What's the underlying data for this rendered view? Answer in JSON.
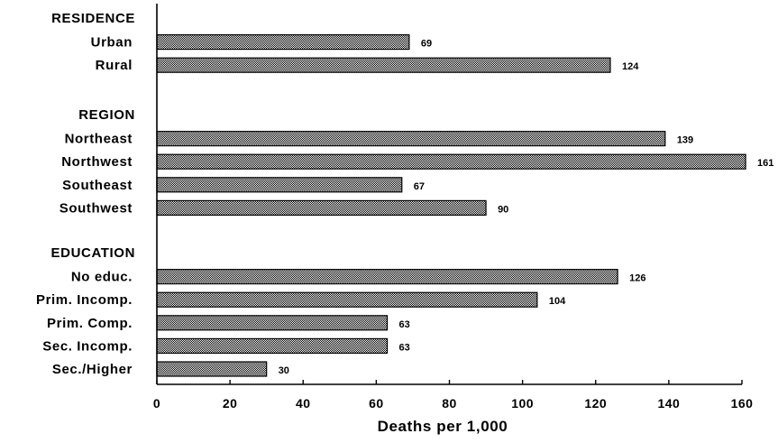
{
  "chart_data": {
    "type": "bar",
    "orientation": "horizontal",
    "title": "",
    "xlabel": "Deaths per 1,000",
    "ylabel": "",
    "xlim": [
      0,
      160
    ],
    "x_ticks": [
      0,
      20,
      40,
      60,
      80,
      100,
      120,
      140,
      160
    ],
    "x_tick_labels": [
      "0",
      "20",
      "40",
      "60",
      "80",
      "100",
      "120",
      "140",
      "160"
    ],
    "grid": false,
    "legend": "none",
    "bar_fill": "#8c8c8c",
    "groups": [
      {
        "heading": "RESIDENCE",
        "categories": [
          "Urban",
          "Rural"
        ],
        "values": [
          69,
          124
        ],
        "value_labels": [
          "69",
          "124"
        ]
      },
      {
        "heading": "REGION",
        "categories": [
          "Northeast",
          "Northwest",
          "Southeast",
          "Southwest"
        ],
        "values": [
          139,
          161,
          67,
          90
        ],
        "value_labels": [
          "139",
          "161",
          "67",
          "90"
        ]
      },
      {
        "heading": "EDUCATION",
        "categories": [
          "No educ.",
          "Prim. Incomp.",
          "Prim. Comp.",
          "Sec. Incomp.",
          "Sec./Higher"
        ],
        "values": [
          126,
          104,
          63,
          63,
          30
        ],
        "value_labels": [
          "126",
          "104",
          "63",
          "63",
          "30"
        ]
      }
    ]
  }
}
